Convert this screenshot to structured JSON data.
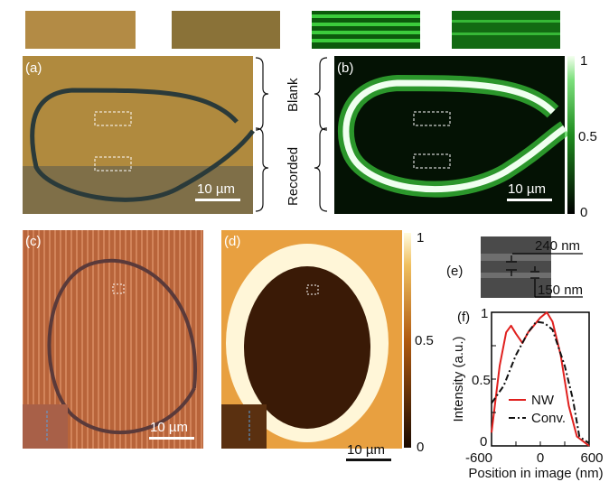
{
  "panels": {
    "a": "(a)",
    "b": "(b)",
    "c": "(c)",
    "d": "(d)",
    "e": "(e)",
    "f": "(f)"
  },
  "scale_bar": "10 µm",
  "regions": {
    "blank": "Blank",
    "recorded": "Recorded"
  },
  "colorbar_ticks": [
    "1",
    "0.5",
    "0"
  ],
  "panel_e": {
    "upper": "240 nm",
    "lower": "150 nm"
  },
  "colors": {
    "nw": "#e0201e",
    "conv": "#111111",
    "fluor": "#3cd23c",
    "optical": "#b0893e"
  },
  "chart_data": {
    "type": "line",
    "xlabel": "Position in image (nm)",
    "ylabel": "Intensity (a.u.)",
    "xlim": [
      -600,
      600
    ],
    "ylim": [
      0,
      1
    ],
    "xticks": [
      "-600",
      "0",
      "600"
    ],
    "yticks": [
      "0",
      "0.5",
      "1"
    ],
    "legend_placement": "bottom-center",
    "series": [
      {
        "name": "NW",
        "style": "solid",
        "x": [
          -600,
          -500,
          -420,
          -360,
          -300,
          -220,
          -150,
          -80,
          0,
          80,
          150,
          250,
          350,
          450,
          600
        ],
        "y": [
          0.1,
          0.6,
          0.85,
          0.9,
          0.84,
          0.77,
          0.85,
          0.9,
          0.96,
          1.0,
          0.93,
          0.68,
          0.3,
          0.07,
          0.0
        ]
      },
      {
        "name": "Conv.",
        "style": "dash-dot",
        "x": [
          -600,
          -450,
          -300,
          -150,
          -50,
          50,
          150,
          300,
          400,
          480,
          600
        ],
        "y": [
          0.32,
          0.45,
          0.68,
          0.85,
          0.93,
          0.92,
          0.87,
          0.6,
          0.35,
          0.07,
          0.02
        ]
      }
    ]
  }
}
